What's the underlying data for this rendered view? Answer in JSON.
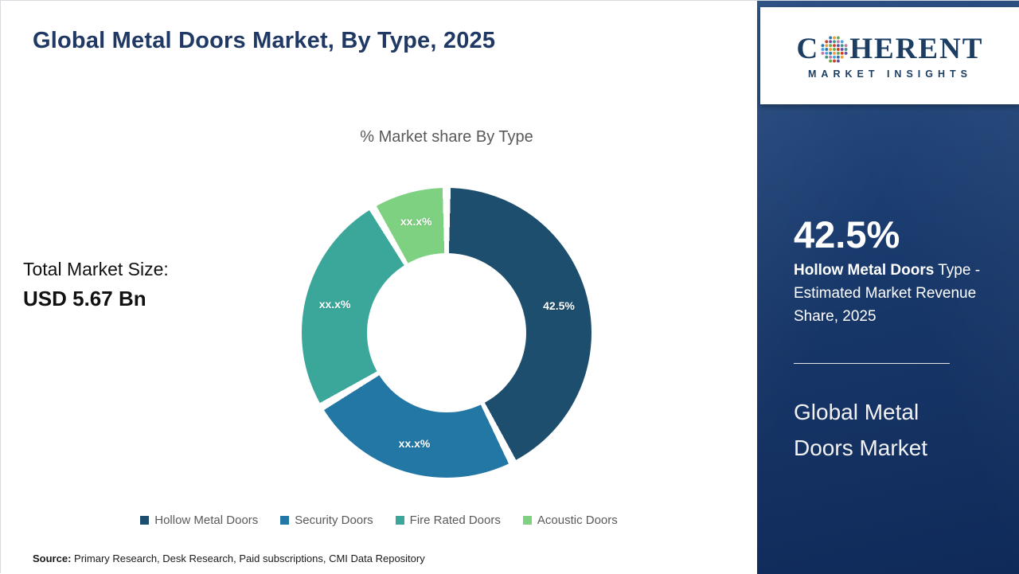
{
  "page": {
    "title": "Global Metal Doors Market, By Type, 2025",
    "source_label": "Source:",
    "source_text": " Primary Research, Desk Research, Paid subscriptions, CMI Data Repository"
  },
  "chart_data": {
    "type": "pie",
    "variant": "donut",
    "title": "% Market share By Type",
    "legend_position": "bottom",
    "units": "percent",
    "segments": [
      {
        "label": "Hollow Metal Doors",
        "value": 42.5,
        "display": "42.5%",
        "color": "#1d4e6d"
      },
      {
        "label": "Security Doors",
        "value": 24.0,
        "display": "xx.x%",
        "color": "#2277a5"
      },
      {
        "label": "Fire Rated Doors",
        "value": 25.0,
        "display": "xx.x%",
        "color": "#3aa79a"
      },
      {
        "label": "Acoustic Doors",
        "value": 8.5,
        "display": "xx.x%",
        "color": "#7ed181"
      }
    ]
  },
  "total_market": {
    "label": "Total Market Size:",
    "value": "USD 5.67 Bn"
  },
  "sidebar": {
    "logo": {
      "part1": "C",
      "part2": "HERENT",
      "subtitle": "MARKET INSIGHTS"
    },
    "highlight_value": "42.5%",
    "highlight_bold": "Hollow Metal Doors",
    "highlight_rest": " Type - Estimated Market Revenue Share, 2025",
    "footer_title": "Global Metal Doors Market"
  }
}
